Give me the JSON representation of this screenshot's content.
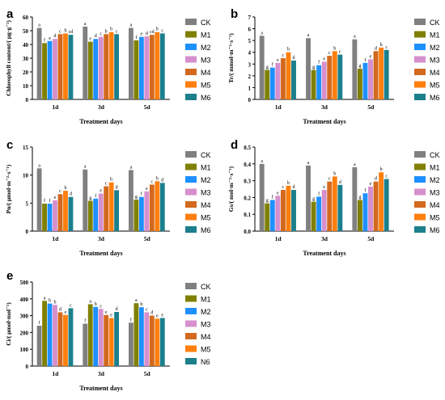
{
  "chart_data": [
    {
      "id": "a",
      "type": "bar",
      "panel_label": "a",
      "categories": [
        "1d",
        "3d",
        "5d"
      ],
      "xlabel": "Treatment days",
      "ylabel": "Chlorophyll content/( μg·g⁻¹)",
      "ylim": [
        0,
        60
      ],
      "yticks": [
        "0",
        "10",
        "20",
        "30",
        "40",
        "50",
        "60"
      ],
      "legend_position": "right",
      "series": [
        {
          "name": "CK",
          "color": "#808080",
          "values": [
            52,
            53,
            52
          ],
          "letters": [
            "a",
            "a",
            "a"
          ]
        },
        {
          "name": "M1",
          "color": "#808000",
          "values": [
            41,
            42,
            43
          ],
          "letters": [
            "f",
            "e",
            "f"
          ]
        },
        {
          "name": "M2",
          "color": "#1e90ff",
          "values": [
            42.5,
            44,
            45.5
          ],
          "letters": [
            "e",
            "d",
            "e"
          ]
        },
        {
          "name": "M3",
          "color": "#d68fcd",
          "values": [
            44,
            45.5,
            46
          ],
          "letters": [
            "d",
            "c",
            "d"
          ]
        },
        {
          "name": "M4",
          "color": "#d2691e",
          "values": [
            47.5,
            47.5,
            47
          ],
          "letters": [
            "c",
            "b",
            "cd"
          ]
        },
        {
          "name": "M5",
          "color": "#ff7f0e",
          "values": [
            48,
            49,
            49
          ],
          "letters": [
            "b",
            "b",
            "b"
          ]
        },
        {
          "name": "M6",
          "color": "#1b7f8c",
          "values": [
            47,
            47.5,
            48
          ],
          "letters": [
            "cd",
            "c",
            "c"
          ]
        }
      ]
    },
    {
      "id": "b",
      "type": "bar",
      "panel_label": "b",
      "categories": [
        "1d",
        "3d",
        "5d"
      ],
      "xlabel": "Treatment days",
      "ylabel": "Tr/( mmol·m⁻²·s⁻¹)",
      "ylim": [
        0,
        7
      ],
      "yticks": [
        "0",
        "1",
        "2",
        "3",
        "4",
        "5",
        "6",
        "7"
      ],
      "legend_position": "right",
      "series": [
        {
          "name": "CK",
          "color": "#808080",
          "values": [
            5.4,
            5.2,
            5.1
          ],
          "letters": [
            "a",
            "a",
            "a"
          ]
        },
        {
          "name": "M1",
          "color": "#808000",
          "values": [
            2.5,
            2.5,
            2.6
          ],
          "letters": [
            "g",
            "g",
            "g"
          ]
        },
        {
          "name": "M2",
          "color": "#1e90ff",
          "values": [
            2.7,
            2.9,
            3.1
          ],
          "letters": [
            "f",
            "f",
            "f"
          ]
        },
        {
          "name": "M3",
          "color": "#d68fcd",
          "values": [
            3.1,
            3.2,
            3.4
          ],
          "letters": [
            "e",
            "e",
            "e"
          ]
        },
        {
          "name": "M4",
          "color": "#d2691e",
          "values": [
            3.5,
            3.7,
            4.1
          ],
          "letters": [
            "c",
            "c",
            "d"
          ]
        },
        {
          "name": "M5",
          "color": "#ff7f0e",
          "values": [
            4.0,
            4.1,
            4.4
          ],
          "letters": [
            "b",
            "b",
            "b"
          ]
        },
        {
          "name": "M6",
          "color": "#1b7f8c",
          "values": [
            3.3,
            3.8,
            4.2
          ],
          "letters": [
            "d",
            "c",
            "c"
          ]
        }
      ]
    },
    {
      "id": "c",
      "type": "bar",
      "panel_label": "c",
      "categories": [
        "1d",
        "3d",
        "5d"
      ],
      "xlabel": "Treatment days",
      "ylabel": "Pn/( μmol·m⁻²·s⁻¹)",
      "ylim": [
        0,
        15
      ],
      "yticks": [
        "0",
        "5",
        "10",
        "15"
      ],
      "legend_position": "right",
      "series": [
        {
          "name": "CK",
          "color": "#808080",
          "values": [
            11.2,
            11.0,
            10.9
          ],
          "letters": [
            "a",
            "a",
            "a"
          ]
        },
        {
          "name": "M1",
          "color": "#808000",
          "values": [
            4.9,
            5.4,
            5.6
          ],
          "letters": [
            "f",
            "g",
            "g"
          ]
        },
        {
          "name": "M2",
          "color": "#1e90ff",
          "values": [
            4.9,
            5.8,
            6.1
          ],
          "letters": [
            "f",
            "f",
            "f"
          ]
        },
        {
          "name": "M3",
          "color": "#d68fcd",
          "values": [
            5.5,
            6.7,
            7.1
          ],
          "letters": [
            "e",
            "e",
            "e"
          ]
        },
        {
          "name": "M4",
          "color": "#d2691e",
          "values": [
            6.6,
            8.0,
            8.3
          ],
          "letters": [
            "c",
            "c",
            "c"
          ]
        },
        {
          "name": "M5",
          "color": "#ff7f0e",
          "values": [
            7.2,
            8.7,
            8.9
          ],
          "letters": [
            "b",
            "b",
            "b"
          ]
        },
        {
          "name": "M6",
          "color": "#1b7f8c",
          "values": [
            6.1,
            7.3,
            8.6
          ],
          "letters": [
            "d",
            "d",
            "d"
          ]
        }
      ]
    },
    {
      "id": "d",
      "type": "bar",
      "panel_label": "d",
      "categories": [
        "1d",
        "3d",
        "5d"
      ],
      "xlabel": "Treatment days",
      "ylabel": "Gs/( mol·m⁻²·s⁻¹)",
      "ylim": [
        0,
        0.5
      ],
      "yticks": [
        "0.0",
        "0.1",
        "0.2",
        "0.3",
        "0.4",
        "0.5"
      ],
      "legend_position": "right",
      "series": [
        {
          "name": "CK",
          "color": "#808080",
          "values": [
            0.4,
            0.39,
            0.38
          ],
          "letters": [
            "a",
            "a",
            "a"
          ]
        },
        {
          "name": "M1",
          "color": "#808000",
          "values": [
            0.165,
            0.175,
            0.185
          ],
          "letters": [
            "g",
            "g",
            "g"
          ]
        },
        {
          "name": "M2",
          "color": "#1e90ff",
          "values": [
            0.185,
            0.205,
            0.225
          ],
          "letters": [
            "f",
            "f",
            "f"
          ]
        },
        {
          "name": "M3",
          "color": "#d68fcd",
          "values": [
            0.21,
            0.245,
            0.265
          ],
          "letters": [
            "e",
            "e",
            "e"
          ]
        },
        {
          "name": "M4",
          "color": "#d2691e",
          "values": [
            0.245,
            0.295,
            0.295
          ],
          "letters": [
            "c",
            "c",
            "d"
          ]
        },
        {
          "name": "M5",
          "color": "#ff7f0e",
          "values": [
            0.27,
            0.325,
            0.35
          ],
          "letters": [
            "b",
            "b",
            "b"
          ]
        },
        {
          "name": "M6",
          "color": "#1b7f8c",
          "values": [
            0.245,
            0.275,
            0.31
          ],
          "letters": [
            "d",
            "d",
            "c"
          ]
        }
      ]
    },
    {
      "id": "e",
      "type": "bar",
      "panel_label": "e",
      "categories": [
        "1d",
        "3d",
        "5d"
      ],
      "xlabel": "Treatment days",
      "ylabel": "Ci/( μmol·mol⁻¹)",
      "ylim": [
        0,
        500
      ],
      "yticks": [
        "0",
        "100",
        "200",
        "300",
        "400",
        "500"
      ],
      "legend_position": "right",
      "series": [
        {
          "name": "CK",
          "color": "#808080",
          "values": [
            240,
            252,
            258
          ],
          "letters": [
            "f",
            "f",
            "f"
          ]
        },
        {
          "name": "M1",
          "color": "#808000",
          "values": [
            388,
            368,
            374
          ],
          "letters": [
            "a",
            "a",
            "a"
          ]
        },
        {
          "name": "M2",
          "color": "#1e90ff",
          "values": [
            372,
            352,
            350
          ],
          "letters": [
            "b",
            "b",
            "b"
          ]
        },
        {
          "name": "M3",
          "color": "#d68fcd",
          "values": [
            364,
            340,
            320
          ],
          "letters": [
            "b",
            "c",
            "c"
          ]
        },
        {
          "name": "M4",
          "color": "#d2691e",
          "values": [
            320,
            304,
            300
          ],
          "letters": [
            "d",
            "e",
            "d"
          ]
        },
        {
          "name": "M5",
          "color": "#ff7f0e",
          "values": [
            304,
            286,
            282
          ],
          "letters": [
            "e",
            "e",
            "e"
          ]
        },
        {
          "name": "N6",
          "color": "#1b7f8c",
          "values": [
            344,
            322,
            286
          ],
          "letters": [
            "c",
            "d",
            "e"
          ]
        }
      ]
    }
  ]
}
